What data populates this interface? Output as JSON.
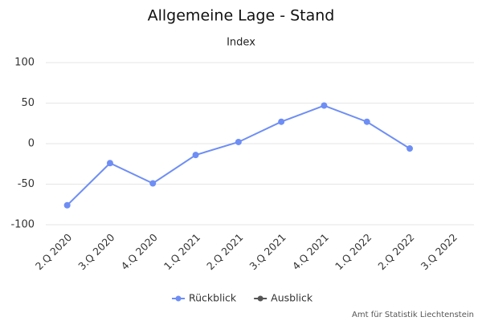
{
  "chart_data": {
    "type": "line",
    "title": "Allgemeine Lage - Stand",
    "subtitle": "Index",
    "categories": [
      "2.Q 2020",
      "3.Q 2020",
      "4.Q 2020",
      "1.Q 2021",
      "2.Q 2021",
      "3.Q 2021",
      "4.Q 2021",
      "1.Q 2022",
      "2.Q 2022",
      "3.Q 2022"
    ],
    "series": [
      {
        "name": "Rückblick",
        "color": "#6e8ef5",
        "values": [
          -76,
          -24,
          -49,
          -14,
          2,
          27,
          47,
          27,
          -6,
          null
        ]
      },
      {
        "name": "Ausblick",
        "color": "#555555",
        "values": [
          null,
          null,
          null,
          null,
          null,
          null,
          null,
          null,
          null,
          null
        ]
      }
    ],
    "ylim": [
      -100,
      100
    ],
    "yticks": [
      -100,
      -50,
      0,
      50,
      100
    ],
    "grid": true,
    "credits": "Amt für Statistik Liechtenstein"
  }
}
